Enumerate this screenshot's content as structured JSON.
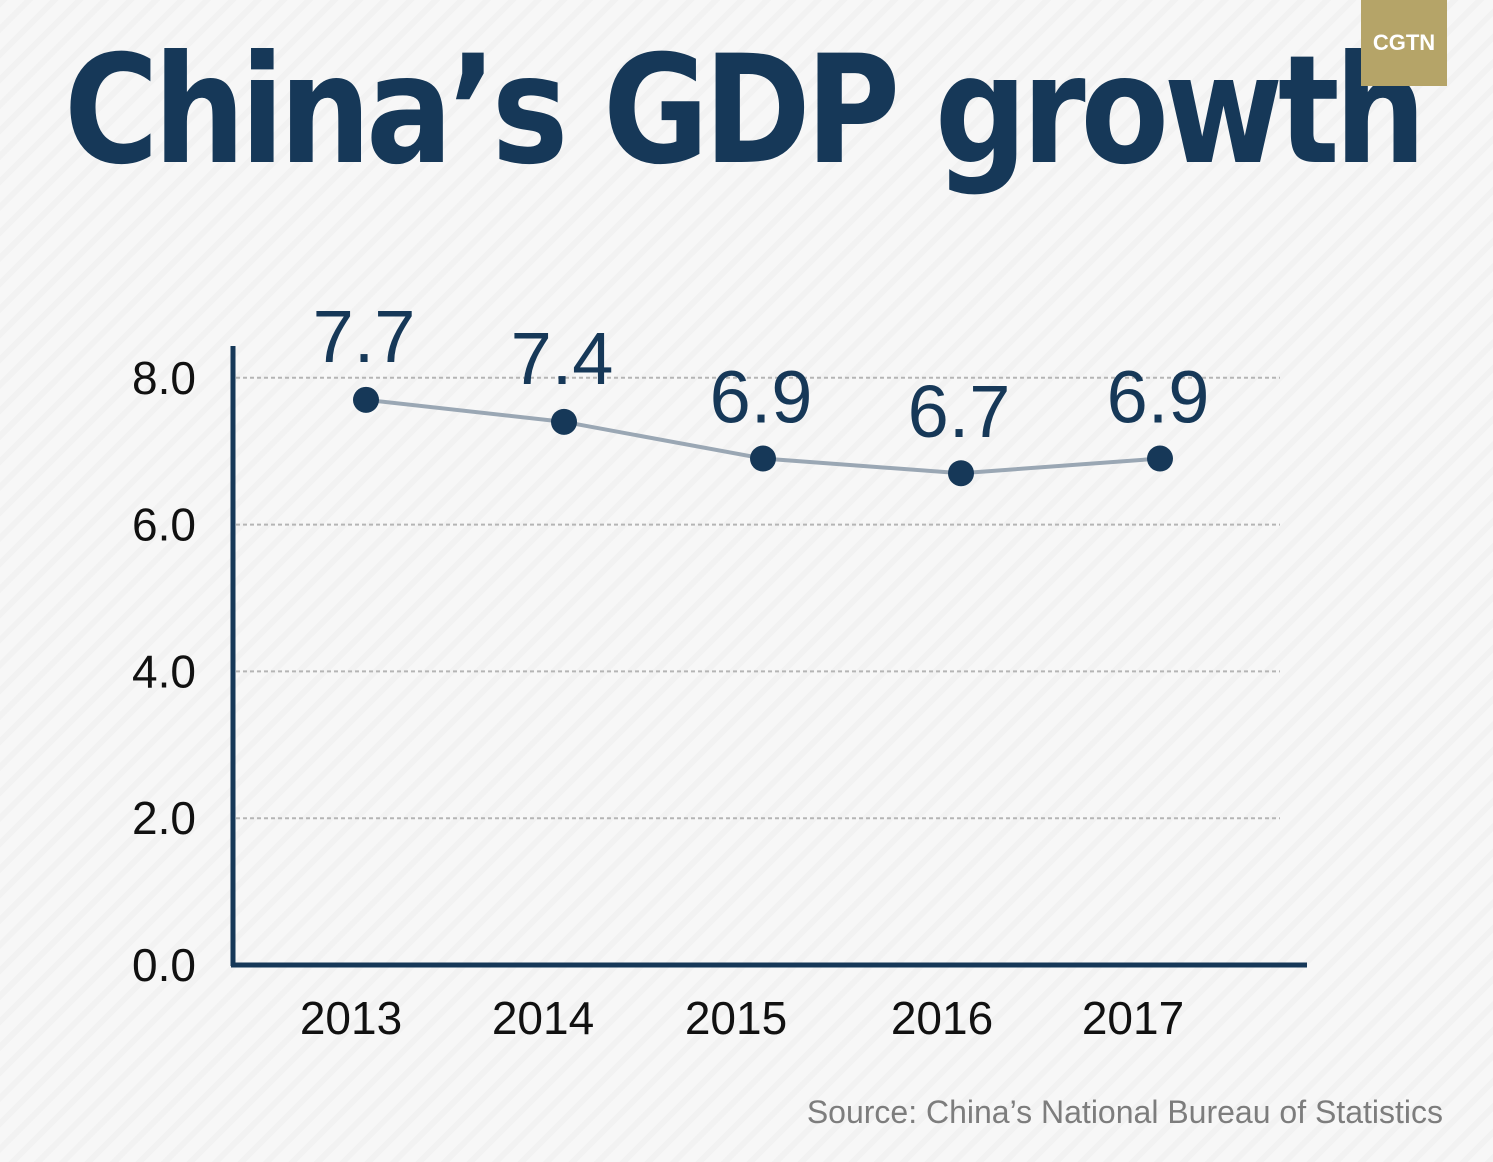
{
  "logo": {
    "text": "CGTN",
    "color": "#b5a468"
  },
  "source": "Source: China’s National Bureau of Statistics",
  "chart_data": {
    "type": "line",
    "title": "China’s GDP growth",
    "categories": [
      "2013",
      "2014",
      "2015",
      "2016",
      "2017"
    ],
    "values": [
      7.7,
      7.4,
      6.9,
      6.7,
      6.9
    ],
    "data_labels": [
      "7.7",
      "7.4",
      "6.9",
      "6.7",
      "6.9"
    ],
    "yticks": [
      "0.0",
      "2.0",
      "4.0",
      "6.0",
      "8.0"
    ],
    "ylim": [
      0,
      8.4
    ],
    "grid": true,
    "colors": {
      "title": "#163858",
      "axis": "#163858",
      "line": "#9aa7b4",
      "marker": "#163858",
      "grid": "#b5b5b5"
    }
  }
}
